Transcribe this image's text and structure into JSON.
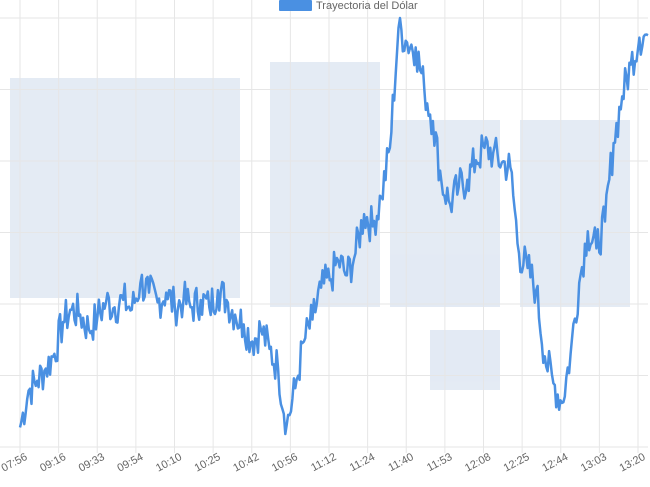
{
  "chart_data": {
    "type": "line",
    "title": "",
    "xlabel": "",
    "ylabel": "",
    "grid": true,
    "legend_position": "top-center",
    "series": [
      {
        "name": "Trayectoria del Dólar",
        "color": "#4a90e2",
        "x": [
          "07:56",
          "08:05",
          "08:12",
          "08:20",
          "08:28",
          "08:36",
          "08:44",
          "08:52",
          "09:00",
          "09:08",
          "09:16",
          "09:20",
          "09:25",
          "09:29",
          "09:33",
          "09:37",
          "09:42",
          "09:46",
          "09:50",
          "09:54",
          "09:58",
          "10:02",
          "10:06",
          "10:10",
          "10:14",
          "10:18",
          "10:22",
          "10:25",
          "10:29",
          "10:33",
          "10:38",
          "10:42",
          "10:46",
          "10:50",
          "10:53",
          "10:56",
          "11:00",
          "11:04",
          "11:08",
          "11:12",
          "11:15",
          "11:18",
          "11:21",
          "11:24",
          "11:28",
          "11:32",
          "11:36",
          "11:40",
          "11:44",
          "11:48",
          "11:53",
          "11:56",
          "12:00",
          "12:04",
          "12:08",
          "12:12",
          "12:16",
          "12:20",
          "12:25",
          "12:29",
          "12:33",
          "12:37",
          "12:40",
          "12:44",
          "12:48",
          "12:52",
          "12:56",
          "13:00",
          "13:03",
          "13:07",
          "13:11",
          "13:14",
          "13:17",
          "13:20"
        ],
        "values": [
          0.8,
          2.3,
          2.7,
          3.2,
          3.8,
          5.1,
          5.6,
          5.4,
          4.8,
          5.3,
          5.9,
          5.7,
          6.0,
          5.6,
          6.7,
          6.3,
          5.9,
          6.3,
          5.7,
          6.0,
          5.7,
          6.0,
          5.7,
          6.4,
          6.0,
          5.4,
          5.0,
          4.3,
          4.8,
          4.0,
          3.2,
          0.9,
          2.4,
          4.3,
          5.2,
          6.5,
          6.8,
          7.6,
          7.0,
          7.9,
          9.5,
          9.0,
          10.2,
          12.2,
          17.1,
          16.5,
          16.3,
          14.6,
          13.3,
          10.8,
          9.9,
          10.6,
          10.9,
          11.7,
          12.2,
          12.0,
          11.6,
          11.4,
          7.9,
          7.3,
          6.4,
          3.7,
          2.6,
          1.8,
          3.8,
          6.7,
          8.8,
          8.1,
          9.2,
          12.4,
          14.3,
          15.6,
          16.7,
          16.8
        ]
      }
    ],
    "x_ticks": [
      "07:56",
      "09:16",
      "09:33",
      "09:54",
      "10:10",
      "10:25",
      "10:42",
      "10:56",
      "11:12",
      "11:24",
      "11:40",
      "11:53",
      "12:08",
      "12:25",
      "12:44",
      "13:03",
      "13:20"
    ]
  }
}
